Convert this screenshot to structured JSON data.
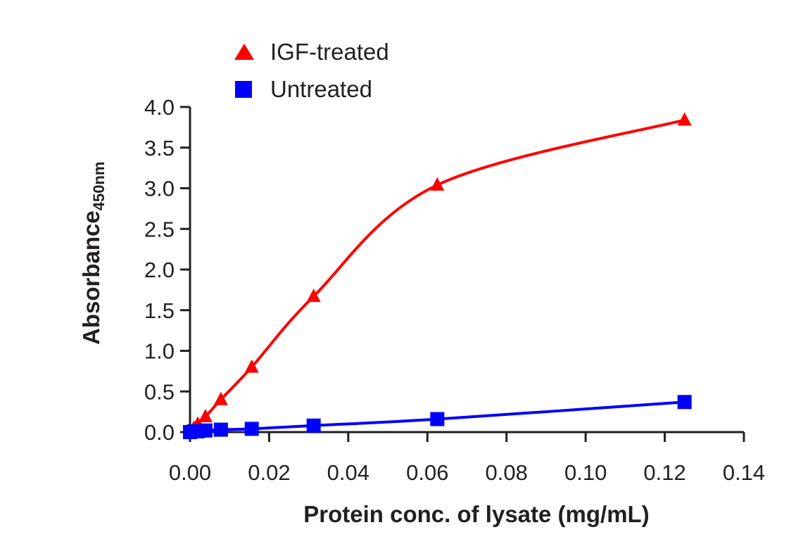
{
  "chart_data": {
    "type": "line",
    "title": "",
    "xlabel": "Protein conc. of lysate (mg/mL)",
    "ylabel": "Absorbance",
    "ylabel_sub": "450nm",
    "xlim": [
      0,
      0.14
    ],
    "ylim": [
      0,
      4.0
    ],
    "xticks": [
      "0.00",
      "0.02",
      "0.04",
      "0.06",
      "0.08",
      "0.10",
      "0.12",
      "0.14"
    ],
    "xtick_values": [
      0,
      0.02,
      0.04,
      0.06,
      0.08,
      0.1,
      0.12,
      0.14
    ],
    "yticks": [
      "0.0",
      "0.5",
      "1.0",
      "1.5",
      "2.0",
      "2.5",
      "3.0",
      "3.5",
      "4.0"
    ],
    "ytick_values": [
      0,
      0.5,
      1.0,
      1.5,
      2.0,
      2.5,
      3.0,
      3.5,
      4.0
    ],
    "grid": false,
    "legend_position": "top-left",
    "series": [
      {
        "name": "IGF-treated",
        "color": "#ff0000",
        "marker": "triangle",
        "x": [
          0,
          0.00098,
          0.00195,
          0.0039,
          0.0078,
          0.0156,
          0.03125,
          0.0625,
          0.125
        ],
        "y": [
          0.0,
          0.05,
          0.1,
          0.19,
          0.4,
          0.8,
          1.67,
          3.04,
          3.84
        ]
      },
      {
        "name": "Untreated",
        "color": "#0000ff",
        "marker": "square",
        "x": [
          0,
          0.00098,
          0.00195,
          0.0039,
          0.0078,
          0.0156,
          0.03125,
          0.0625,
          0.125
        ],
        "y": [
          0.0,
          0.01,
          0.01,
          0.02,
          0.03,
          0.04,
          0.08,
          0.16,
          0.37
        ]
      }
    ]
  }
}
